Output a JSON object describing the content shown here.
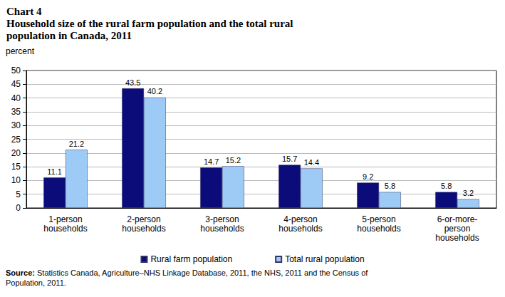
{
  "chart_data": {
    "type": "bar",
    "title": "Chart 4\nHousehold size of the rural farm population and the total rural\npopulation in Canada, 2011",
    "ylabel": "percent",
    "categories": [
      "1-person\nhouseholds",
      "2-person\nhouseholds",
      "3-person\nhouseholds",
      "4-person\nhouseholds",
      "5-person\nhouseholds",
      "6-or-more-\nperson\nhouseholds"
    ],
    "series": [
      {
        "name": "Rural farm population",
        "color": "#0b0b7a",
        "values": [
          11.1,
          43.5,
          14.7,
          15.7,
          9.2,
          5.8
        ]
      },
      {
        "name": "Total rural population",
        "color": "#9ecbf5",
        "values": [
          21.2,
          40.2,
          15.2,
          14.4,
          5.8,
          3.2
        ]
      }
    ],
    "ylim": [
      0,
      50
    ],
    "yticks": [
      0,
      5,
      10,
      15,
      20,
      25,
      30,
      35,
      40,
      45,
      50
    ],
    "grid": true,
    "legend": "bottom",
    "data_labels": true,
    "annotations": [
      "Source: Statistics Canada, Agriculture–NHS Linkage Database, 2011, the NHS, 2011 and the Census of\nPopulation, 2011."
    ]
  }
}
